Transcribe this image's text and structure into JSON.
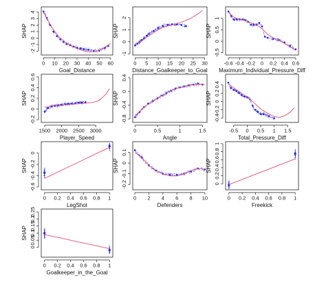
{
  "colors": {
    "points": "#1f1fe0",
    "trend": "#e0506e",
    "axis": "#222222"
  },
  "chart_data": [
    {
      "id": "goal_distance",
      "type": "scatter",
      "xlabel": "Goal_Distance",
      "ylabel": "SHAP",
      "xlim": [
        -2,
        62
      ],
      "ylim": [
        -2.6,
        4.8
      ],
      "xticks": [
        0,
        10,
        20,
        30,
        40,
        50,
        60
      ],
      "yticks": [
        -2,
        -1,
        0,
        1,
        2,
        3,
        4
      ],
      "x": [
        0,
        3,
        6,
        9,
        12,
        15,
        18,
        21,
        24,
        27,
        30,
        33,
        36,
        40,
        45,
        50,
        55,
        58
      ],
      "y": [
        4.1,
        3.1,
        2.0,
        1.0,
        0.3,
        -0.2,
        -0.6,
        -0.9,
        -1.1,
        -1.3,
        -1.5,
        -1.6,
        -1.7,
        -1.8,
        -2.0,
        -1.9,
        -1.5,
        -1.2
      ],
      "trend": {
        "x": [
          0,
          5,
          10,
          15,
          20,
          25,
          30,
          35,
          40,
          45,
          50,
          55,
          60
        ],
        "y": [
          4.0,
          2.4,
          1.0,
          0.0,
          -0.7,
          -1.2,
          -1.6,
          -1.9,
          -2.1,
          -2.1,
          -1.9,
          -1.4,
          -0.8
        ]
      }
    },
    {
      "id": "distance_goalkeeper",
      "type": "scatter",
      "xlabel": "Distance_Goalkeeper_to_Goal",
      "ylabel": "SHAP",
      "xlim": [
        -1,
        31
      ],
      "ylim": [
        -1.1,
        2.9
      ],
      "xticks": [
        0,
        5,
        10,
        15,
        20,
        25,
        30
      ],
      "yticks": [
        -1,
        0,
        1,
        2
      ],
      "x": [
        0,
        1,
        2,
        3,
        4,
        5,
        6,
        8,
        10,
        12,
        14,
        16,
        18,
        20,
        22
      ],
      "y": [
        -0.3,
        -0.15,
        0.0,
        0.15,
        0.3,
        0.5,
        0.65,
        0.9,
        1.15,
        1.3,
        1.4,
        1.45,
        1.45,
        1.4,
        1.3
      ],
      "trend": {
        "x": [
          0,
          3,
          6,
          9,
          12,
          15,
          18,
          21,
          24,
          27,
          29
        ],
        "y": [
          -0.2,
          0.1,
          0.5,
          0.9,
          1.2,
          1.35,
          1.5,
          1.7,
          1.95,
          2.3,
          2.6
        ]
      }
    },
    {
      "id": "max_individual_pressure",
      "type": "scatter",
      "xlabel": "Maximum_Individual_Pressure_Diff",
      "ylabel": "SHAP",
      "xlim": [
        -0.65,
        0.65
      ],
      "ylim": [
        -0.6,
        1.5
      ],
      "xticks": [
        -0.6,
        -0.4,
        -0.2,
        0.0,
        0.2,
        0.4,
        0.6
      ],
      "yticks": [
        -0.5,
        0.0,
        0.5,
        1.0
      ],
      "x": [
        -0.6,
        -0.55,
        -0.5,
        -0.45,
        -0.4,
        -0.35,
        -0.3,
        -0.25,
        -0.2,
        -0.15,
        -0.1,
        -0.05,
        0.0,
        0.05,
        0.1,
        0.2,
        0.3,
        0.4,
        0.5,
        0.6
      ],
      "y": [
        1.3,
        1.1,
        0.95,
        0.95,
        0.95,
        0.95,
        0.92,
        0.85,
        0.72,
        0.72,
        0.72,
        0.8,
        0.65,
        0.2,
        0.15,
        0.1,
        0.05,
        -0.05,
        -0.2,
        -0.35
      ],
      "trend": {
        "x": [
          -0.6,
          -0.5,
          -0.4,
          -0.3,
          -0.2,
          -0.1,
          0.0,
          0.1,
          0.2,
          0.3,
          0.4,
          0.5,
          0.6
        ],
        "y": [
          1.25,
          1.05,
          0.95,
          0.9,
          0.8,
          0.72,
          0.55,
          0.3,
          0.15,
          0.05,
          -0.1,
          -0.25,
          -0.4
        ]
      }
    },
    {
      "id": "player_speed",
      "type": "scatter",
      "xlabel": "Player_Speed",
      "ylabel": "SHAP",
      "xlim": [
        1400,
        3500
      ],
      "ylim": [
        -0.25,
        0.65
      ],
      "xticks": [
        1500,
        2000,
        2500,
        3000
      ],
      "yticks": [
        -0.2,
        0.0,
        0.2,
        0.4,
        0.6
      ],
      "x": [
        1500,
        1600,
        1700,
        1800,
        1900,
        2000,
        2100,
        2200,
        2300,
        2400,
        2500,
        2600,
        2700
      ],
      "y": [
        -0.05,
        0.02,
        0.05,
        0.06,
        0.07,
        0.08,
        0.09,
        0.1,
        0.1,
        0.11,
        0.12,
        0.12,
        0.13
      ],
      "trend": {
        "x": [
          1500,
          1700,
          1900,
          2100,
          2300,
          2500,
          2700,
          2900,
          3100,
          3300,
          3400
        ],
        "y": [
          0.03,
          0.06,
          0.07,
          0.08,
          0.09,
          0.1,
          0.11,
          0.12,
          0.16,
          0.28,
          0.38
        ]
      }
    },
    {
      "id": "angle",
      "type": "scatter",
      "xlabel": "Angle",
      "ylabel": "SHAP",
      "xlim": [
        -0.05,
        1.6
      ],
      "ylim": [
        -0.9,
        0.5
      ],
      "xticks": [
        0.0,
        0.5,
        1.0,
        1.5
      ],
      "yticks": [
        -0.8,
        -0.4,
        0.0,
        0.4
      ],
      "x": [
        0.0,
        0.1,
        0.2,
        0.3,
        0.4,
        0.5,
        0.6,
        0.7,
        0.8,
        0.9,
        1.0,
        1.1,
        1.2,
        1.3,
        1.4,
        1.5
      ],
      "y": [
        -0.75,
        -0.6,
        -0.45,
        -0.35,
        -0.28,
        -0.2,
        -0.12,
        -0.05,
        0.02,
        0.08,
        0.12,
        0.15,
        0.18,
        0.2,
        0.22,
        0.2
      ],
      "trend": {
        "x": [
          0.0,
          0.2,
          0.4,
          0.6,
          0.8,
          1.0,
          1.2,
          1.4,
          1.55
        ],
        "y": [
          -0.72,
          -0.45,
          -0.28,
          -0.12,
          0.02,
          0.12,
          0.18,
          0.21,
          0.2
        ]
      }
    },
    {
      "id": "total_pressure",
      "type": "scatter",
      "xlabel": "Total_Pressure_Diff",
      "ylabel": "SHAP",
      "xlim": [
        -0.8,
        1.9
      ],
      "ylim": [
        -0.5,
        0.65
      ],
      "xticks": [
        -0.5,
        0.0,
        0.5,
        1.0,
        1.5
      ],
      "yticks": [
        -0.4,
        -0.2,
        0.0,
        0.2,
        0.4
      ],
      "x": [
        -0.7,
        -0.6,
        -0.5,
        -0.4,
        -0.3,
        -0.2,
        -0.1,
        0.0,
        0.1,
        0.2,
        0.3,
        0.4,
        0.5,
        0.6,
        0.8,
        1.0
      ],
      "y": [
        0.45,
        0.32,
        0.28,
        0.25,
        0.2,
        0.15,
        0.12,
        0.1,
        0.05,
        -0.1,
        -0.2,
        -0.25,
        -0.3,
        -0.3,
        -0.35,
        -0.4
      ],
      "trend": {
        "x": [
          -0.7,
          -0.4,
          -0.1,
          0.2,
          0.5,
          0.8,
          1.0,
          1.2,
          1.4,
          1.6,
          1.75
        ],
        "y": [
          0.42,
          0.28,
          0.15,
          0.0,
          -0.18,
          -0.3,
          -0.36,
          -0.38,
          -0.34,
          -0.25,
          -0.15
        ]
      }
    },
    {
      "id": "legshot",
      "type": "scatter",
      "xlabel": "LegShot",
      "ylabel": "SHAP",
      "xlim": [
        -0.05,
        1.05
      ],
      "ylim": [
        -0.65,
        0.2
      ],
      "xticks": [
        0.0,
        0.2,
        0.4,
        0.6,
        0.8,
        1.0
      ],
      "yticks": [
        -0.6,
        -0.4,
        -0.2,
        0.0
      ],
      "x": [
        0,
        1
      ],
      "y": [
        -0.35,
        0.12
      ],
      "trend": {
        "x": [
          0,
          1
        ],
        "y": [
          -0.45,
          0.1
        ]
      }
    },
    {
      "id": "defenders",
      "type": "scatter",
      "xlabel": "Defenders",
      "ylabel": "SHAP",
      "xlim": [
        -0.3,
        10.3
      ],
      "ylim": [
        -0.25,
        0.2
      ],
      "xticks": [
        0,
        2,
        4,
        6,
        8,
        10
      ],
      "yticks": [
        -0.2,
        -0.1,
        0.0,
        0.1
      ],
      "x": [
        0,
        1,
        2,
        3,
        4,
        5,
        6,
        7,
        8,
        9,
        10
      ],
      "y": [
        0.12,
        0.05,
        -0.02,
        -0.07,
        -0.1,
        -0.11,
        -0.11,
        -0.1,
        -0.08,
        -0.05,
        -0.06
      ],
      "trend": {
        "x": [
          0,
          1,
          2,
          3,
          4,
          5,
          6,
          7,
          8,
          9,
          10
        ],
        "y": [
          0.1,
          0.05,
          -0.02,
          -0.07,
          -0.1,
          -0.12,
          -0.12,
          -0.1,
          -0.07,
          -0.05,
          -0.06
        ]
      }
    },
    {
      "id": "freekick",
      "type": "scatter",
      "xlabel": "Freekick",
      "ylabel": "SHAP",
      "xlim": [
        -0.05,
        1.05
      ],
      "ylim": [
        -0.15,
        1.05
      ],
      "xticks": [
        0.0,
        0.2,
        0.4,
        0.6,
        0.8,
        1.0
      ],
      "yticks": [
        0.0,
        0.2,
        0.4,
        0.6,
        0.8,
        1.0
      ],
      "x": [
        0,
        1
      ],
      "y": [
        -0.03,
        0.75
      ],
      "trend": {
        "x": [
          0,
          1
        ],
        "y": [
          -0.02,
          0.62
        ]
      }
    },
    {
      "id": "goalkeeper_in_goal",
      "type": "scatter",
      "xlabel": "Goalkeeper_in_the_Goal",
      "ylabel": "SHAP",
      "xlim": [
        -0.05,
        1.05
      ],
      "ylim": [
        -0.07,
        0.27
      ],
      "xticks": [
        0.0,
        0.2,
        0.4,
        0.6,
        0.8,
        1.0
      ],
      "yticks": [
        0.0,
        0.05,
        0.1,
        0.15,
        0.2,
        0.25
      ],
      "x": [
        0,
        1
      ],
      "y": [
        0.1,
        -0.02
      ],
      "trend": {
        "x": [
          0,
          1
        ],
        "y": [
          0.09,
          -0.01
        ]
      }
    }
  ]
}
